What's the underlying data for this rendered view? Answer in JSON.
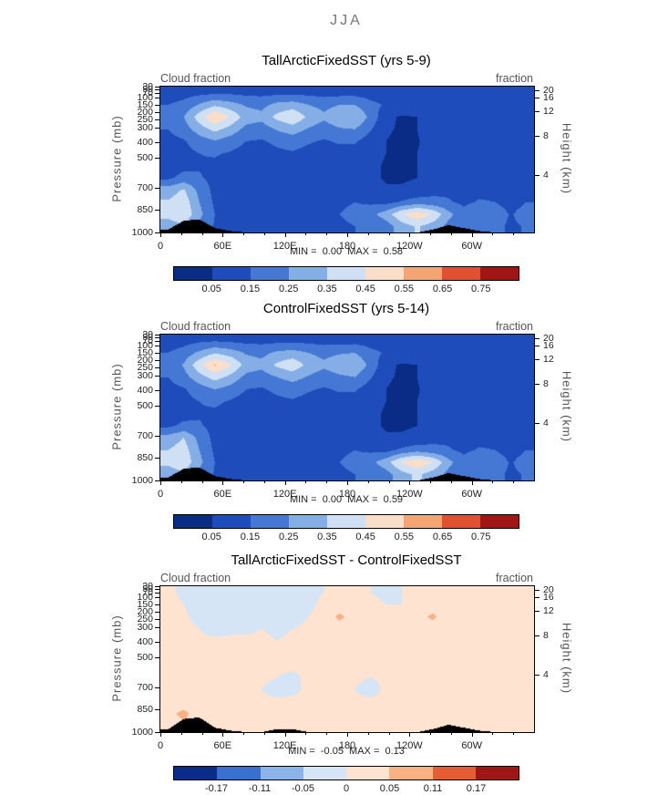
{
  "figure_title": "JJA",
  "axes": {
    "top_left_label": "Cloud fraction",
    "top_right_label": "fraction",
    "pressure_axis_title": "Pressure (mb)",
    "height_axis_title": "Height (km)",
    "x_minor_step": 20,
    "x_ticks": [
      {
        "lon": 0,
        "label": "0"
      },
      {
        "lon": 60,
        "label": "60E"
      },
      {
        "lon": 120,
        "label": "120E"
      },
      {
        "lon": 180,
        "label": "180"
      },
      {
        "lon": 240,
        "label": "120W"
      },
      {
        "lon": 300,
        "label": "60W"
      }
    ],
    "pressure_ticks": [
      {
        "p": 30,
        "label": "30"
      },
      {
        "p": 50,
        "label": "50"
      },
      {
        "p": 70,
        "label": "70"
      },
      {
        "p": 100,
        "label": "100"
      },
      {
        "p": 150,
        "label": "150"
      },
      {
        "p": 200,
        "label": "200"
      },
      {
        "p": 250,
        "label": "250"
      },
      {
        "p": 300,
        "label": "300"
      },
      {
        "p": 400,
        "label": "400"
      },
      {
        "p": 500,
        "label": "500"
      },
      {
        "p": 700,
        "label": "700"
      },
      {
        "p": 850,
        "label": "850"
      },
      {
        "p": 1000,
        "label": "1000"
      }
    ],
    "height_ticks": [
      {
        "km": 20,
        "p": 55,
        "label": "20"
      },
      {
        "km": 16,
        "p": 103,
        "label": "16"
      },
      {
        "km": 12,
        "p": 194,
        "label": "12"
      },
      {
        "km": 8,
        "p": 356,
        "label": "8"
      },
      {
        "km": 4,
        "p": 616,
        "label": "4"
      }
    ]
  },
  "chart_data": [
    {
      "type": "heatmap",
      "title": "TallArcticFixedSST (yrs 5-9)",
      "minmax": "MIN =  0.00  MAX =  0.58",
      "min": 0.0,
      "max": 0.58,
      "x_range_deg": [
        0,
        360
      ],
      "pressure_range_mb": [
        30,
        1000
      ],
      "levels": [
        0.05,
        0.15,
        0.25,
        0.35,
        0.45,
        0.55,
        0.65,
        0.75
      ],
      "colors": [
        "#0a2c86",
        "#1e4cba",
        "#4478d4",
        "#85aee6",
        "#cfe0f4",
        "#f9dfca",
        "#f5a571",
        "#e0512f",
        "#a01515"
      ],
      "colorbar_labels": [
        "0.05",
        "0.15",
        "0.25",
        "0.35",
        "0.45",
        "0.55",
        "0.65",
        "0.75"
      ],
      "values": [
        [
          0.1,
          0.11,
          0.12,
          0.13,
          0.13,
          0.12,
          0.12,
          0.12,
          0.12,
          0.12,
          0.11,
          0.11,
          0.11,
          0.1,
          0.09,
          0.09,
          0.09,
          0.1,
          0.1,
          0.09,
          0.09,
          0.09,
          0.09,
          0.1
        ],
        [
          0.15,
          0.18,
          0.26,
          0.33,
          0.29,
          0.24,
          0.22,
          0.28,
          0.3,
          0.25,
          0.22,
          0.25,
          0.25,
          0.18,
          0.14,
          0.12,
          0.12,
          0.15,
          0.13,
          0.12,
          0.12,
          0.13,
          0.12,
          0.13
        ],
        [
          0.18,
          0.25,
          0.4,
          0.55,
          0.44,
          0.3,
          0.28,
          0.38,
          0.44,
          0.33,
          0.27,
          0.33,
          0.35,
          0.22,
          0.07,
          0.04,
          0.05,
          0.14,
          0.1,
          0.08,
          0.09,
          0.11,
          0.1,
          0.13
        ],
        [
          0.15,
          0.2,
          0.3,
          0.38,
          0.31,
          0.22,
          0.2,
          0.26,
          0.3,
          0.24,
          0.2,
          0.24,
          0.25,
          0.16,
          0.06,
          0.04,
          0.05,
          0.12,
          0.09,
          0.07,
          0.08,
          0.1,
          0.09,
          0.11
        ],
        [
          0.12,
          0.14,
          0.2,
          0.24,
          0.2,
          0.15,
          0.14,
          0.17,
          0.19,
          0.16,
          0.14,
          0.16,
          0.16,
          0.1,
          0.05,
          0.03,
          0.04,
          0.1,
          0.08,
          0.06,
          0.07,
          0.09,
          0.08,
          0.09
        ],
        [
          0.1,
          0.12,
          0.15,
          0.16,
          0.14,
          0.11,
          0.11,
          0.13,
          0.14,
          0.12,
          0.11,
          0.12,
          0.12,
          0.08,
          0.05,
          0.04,
          0.05,
          0.11,
          0.09,
          0.07,
          0.08,
          0.09,
          0.08,
          0.09
        ],
        [
          0.1,
          0.12,
          0.14,
          0.13,
          0.11,
          0.09,
          0.1,
          0.12,
          0.12,
          0.1,
          0.1,
          0.11,
          0.1,
          0.07,
          0.04,
          0.03,
          0.05,
          0.1,
          0.09,
          0.07,
          0.08,
          0.09,
          0.08,
          0.08
        ],
        [
          0.13,
          0.18,
          0.16,
          0.12,
          0.1,
          0.08,
          0.09,
          0.11,
          0.11,
          0.09,
          0.09,
          0.1,
          0.1,
          0.07,
          0.04,
          0.04,
          0.05,
          0.1,
          0.1,
          0.08,
          0.09,
          0.1,
          0.08,
          0.09
        ],
        [
          0.3,
          0.36,
          0.22,
          0.12,
          0.09,
          0.08,
          0.08,
          0.1,
          0.1,
          0.09,
          0.09,
          0.1,
          0.1,
          0.08,
          0.06,
          0.06,
          0.07,
          0.12,
          0.13,
          0.1,
          0.12,
          0.12,
          0.09,
          0.12
        ],
        [
          0.36,
          0.41,
          0.25,
          0.13,
          0.1,
          0.09,
          0.09,
          0.11,
          0.11,
          0.1,
          0.11,
          0.13,
          0.15,
          0.13,
          0.12,
          0.16,
          0.2,
          0.18,
          0.16,
          0.13,
          0.16,
          0.15,
          0.1,
          0.15
        ],
        [
          0.38,
          0.43,
          0.28,
          0.15,
          0.12,
          0.1,
          0.1,
          0.12,
          0.13,
          0.12,
          0.13,
          0.15,
          0.18,
          0.22,
          0.3,
          0.44,
          0.52,
          0.44,
          0.28,
          0.18,
          0.25,
          0.22,
          0.14,
          0.2
        ],
        [
          0.3,
          0.33,
          0.22,
          0.14,
          0.12,
          0.1,
          0.1,
          0.12,
          0.12,
          0.11,
          0.12,
          0.13,
          0.15,
          0.16,
          0.2,
          0.3,
          0.36,
          0.3,
          0.22,
          0.16,
          0.2,
          0.18,
          0.13,
          0.16
        ]
      ],
      "topography": [
        0.02,
        0.08,
        0.09,
        0.03,
        0.01,
        0,
        0,
        0,
        0,
        0,
        0,
        0,
        0,
        0,
        0,
        0,
        0,
        0.02,
        0.05,
        0.03,
        0.01,
        0,
        0,
        0
      ]
    },
    {
      "type": "heatmap",
      "title": "ControlFixedSST (yrs 5-14)",
      "minmax": "MIN =  0.00  MAX =  0.59",
      "min": 0.0,
      "max": 0.59,
      "x_range_deg": [
        0,
        360
      ],
      "pressure_range_mb": [
        30,
        1000
      ],
      "levels": [
        0.05,
        0.15,
        0.25,
        0.35,
        0.45,
        0.55,
        0.65,
        0.75
      ],
      "colors": [
        "#0a2c86",
        "#1e4cba",
        "#4478d4",
        "#85aee6",
        "#cfe0f4",
        "#f9dfca",
        "#f5a571",
        "#e0512f",
        "#a01515"
      ],
      "colorbar_labels": [
        "0.05",
        "0.15",
        "0.25",
        "0.35",
        "0.45",
        "0.55",
        "0.65",
        "0.75"
      ],
      "values": [
        [
          0.1,
          0.11,
          0.13,
          0.14,
          0.13,
          0.12,
          0.12,
          0.12,
          0.12,
          0.12,
          0.11,
          0.11,
          0.11,
          0.1,
          0.09,
          0.09,
          0.09,
          0.1,
          0.1,
          0.09,
          0.09,
          0.09,
          0.09,
          0.1
        ],
        [
          0.15,
          0.19,
          0.27,
          0.34,
          0.3,
          0.24,
          0.22,
          0.27,
          0.29,
          0.25,
          0.22,
          0.24,
          0.25,
          0.18,
          0.14,
          0.12,
          0.12,
          0.15,
          0.13,
          0.12,
          0.12,
          0.13,
          0.12,
          0.13
        ],
        [
          0.18,
          0.26,
          0.42,
          0.56,
          0.46,
          0.31,
          0.28,
          0.37,
          0.42,
          0.32,
          0.27,
          0.32,
          0.34,
          0.22,
          0.07,
          0.04,
          0.05,
          0.14,
          0.1,
          0.08,
          0.09,
          0.11,
          0.1,
          0.13
        ],
        [
          0.15,
          0.21,
          0.31,
          0.39,
          0.32,
          0.22,
          0.2,
          0.25,
          0.29,
          0.24,
          0.2,
          0.23,
          0.25,
          0.16,
          0.06,
          0.04,
          0.05,
          0.12,
          0.09,
          0.07,
          0.08,
          0.1,
          0.09,
          0.11
        ],
        [
          0.12,
          0.14,
          0.2,
          0.25,
          0.21,
          0.15,
          0.14,
          0.17,
          0.19,
          0.16,
          0.14,
          0.16,
          0.16,
          0.1,
          0.05,
          0.03,
          0.04,
          0.1,
          0.08,
          0.06,
          0.07,
          0.09,
          0.08,
          0.09
        ],
        [
          0.1,
          0.12,
          0.15,
          0.17,
          0.14,
          0.11,
          0.11,
          0.13,
          0.14,
          0.12,
          0.11,
          0.12,
          0.12,
          0.08,
          0.05,
          0.04,
          0.05,
          0.11,
          0.09,
          0.07,
          0.08,
          0.09,
          0.08,
          0.09
        ],
        [
          0.1,
          0.12,
          0.14,
          0.13,
          0.11,
          0.09,
          0.1,
          0.12,
          0.12,
          0.1,
          0.1,
          0.11,
          0.1,
          0.07,
          0.04,
          0.03,
          0.05,
          0.1,
          0.09,
          0.07,
          0.08,
          0.09,
          0.08,
          0.08
        ],
        [
          0.13,
          0.17,
          0.16,
          0.12,
          0.1,
          0.08,
          0.09,
          0.11,
          0.11,
          0.09,
          0.09,
          0.1,
          0.1,
          0.07,
          0.04,
          0.04,
          0.05,
          0.1,
          0.1,
          0.08,
          0.09,
          0.1,
          0.08,
          0.09
        ],
        [
          0.29,
          0.35,
          0.22,
          0.12,
          0.09,
          0.08,
          0.08,
          0.1,
          0.1,
          0.09,
          0.09,
          0.1,
          0.1,
          0.08,
          0.06,
          0.06,
          0.07,
          0.12,
          0.13,
          0.1,
          0.12,
          0.12,
          0.09,
          0.12
        ],
        [
          0.35,
          0.4,
          0.25,
          0.13,
          0.1,
          0.09,
          0.09,
          0.11,
          0.11,
          0.1,
          0.11,
          0.13,
          0.15,
          0.13,
          0.12,
          0.17,
          0.21,
          0.18,
          0.16,
          0.13,
          0.16,
          0.15,
          0.1,
          0.15
        ],
        [
          0.37,
          0.42,
          0.28,
          0.15,
          0.12,
          0.1,
          0.1,
          0.12,
          0.13,
          0.12,
          0.13,
          0.15,
          0.18,
          0.22,
          0.31,
          0.46,
          0.53,
          0.45,
          0.28,
          0.18,
          0.25,
          0.22,
          0.14,
          0.2
        ],
        [
          0.3,
          0.33,
          0.22,
          0.14,
          0.12,
          0.1,
          0.1,
          0.12,
          0.12,
          0.11,
          0.12,
          0.13,
          0.15,
          0.16,
          0.21,
          0.31,
          0.37,
          0.3,
          0.22,
          0.16,
          0.2,
          0.18,
          0.13,
          0.16
        ]
      ],
      "topography": [
        0.02,
        0.08,
        0.09,
        0.03,
        0.01,
        0,
        0,
        0,
        0,
        0,
        0,
        0,
        0,
        0,
        0,
        0,
        0,
        0.02,
        0.05,
        0.03,
        0.01,
        0,
        0,
        0
      ]
    },
    {
      "type": "heatmap",
      "title": "TallArcticFixedSST - ControlFixedSST",
      "minmax": "MIN =  -0.05  MAX =  0.13",
      "min": -0.05,
      "max": 0.13,
      "x_range_deg": [
        0,
        360
      ],
      "pressure_range_mb": [
        30,
        1000
      ],
      "levels": [
        -0.17,
        -0.11,
        -0.05,
        0,
        0.05,
        0.11,
        0.17
      ],
      "colors": [
        "#0a2c86",
        "#3a6fce",
        "#8db4e8",
        "#d6e5f6",
        "#fde3d0",
        "#f8b183",
        "#e65c35",
        "#a01515"
      ],
      "colorbar_labels": [
        "-0.17",
        "-0.11",
        "-0.05",
        "0",
        "0.05",
        "0.11",
        "0.17"
      ],
      "values": [
        [
          0.01,
          -0.01,
          -0.02,
          -0.02,
          -0.01,
          -0.01,
          0.0,
          -0.01,
          -0.02,
          -0.01,
          0.0,
          0.01,
          0.01,
          0.0,
          -0.01,
          0.0,
          0.01,
          0.01,
          0.0,
          0.0,
          0.01,
          0.01,
          0.0,
          0.01
        ],
        [
          0.02,
          0.0,
          -0.03,
          -0.03,
          -0.02,
          -0.02,
          -0.01,
          -0.02,
          -0.03,
          -0.01,
          0.01,
          0.02,
          0.02,
          0.01,
          0.0,
          0.0,
          0.02,
          0.02,
          0.01,
          0.0,
          0.01,
          0.02,
          0.01,
          0.02
        ],
        [
          0.04,
          0.01,
          -0.02,
          -0.04,
          -0.03,
          -0.02,
          -0.01,
          -0.03,
          -0.02,
          0.0,
          0.02,
          0.06,
          0.03,
          0.01,
          0.0,
          0.01,
          0.03,
          0.06,
          0.02,
          0.01,
          0.02,
          0.03,
          0.02,
          0.03
        ],
        [
          0.03,
          0.02,
          0.0,
          -0.02,
          -0.01,
          -0.01,
          0.0,
          -0.01,
          0.0,
          0.01,
          0.02,
          0.03,
          0.02,
          0.01,
          0.01,
          0.01,
          0.02,
          0.03,
          0.02,
          0.01,
          0.02,
          0.02,
          0.02,
          0.02
        ],
        [
          0.02,
          0.02,
          0.01,
          0.01,
          0.01,
          0.01,
          0.01,
          0.0,
          0.01,
          0.01,
          0.02,
          0.02,
          0.02,
          0.01,
          0.01,
          0.01,
          0.02,
          0.02,
          0.02,
          0.01,
          0.02,
          0.02,
          0.02,
          0.02
        ],
        [
          0.02,
          0.02,
          0.02,
          0.02,
          0.01,
          0.01,
          0.01,
          0.01,
          0.01,
          0.01,
          0.02,
          0.02,
          0.02,
          0.01,
          0.01,
          0.01,
          0.02,
          0.02,
          0.02,
          0.02,
          0.02,
          0.02,
          0.02,
          0.02
        ],
        [
          0.02,
          0.03,
          0.03,
          0.02,
          0.01,
          0.01,
          0.01,
          0.01,
          0.01,
          0.01,
          0.02,
          0.02,
          0.01,
          0.01,
          0.01,
          0.01,
          0.02,
          0.03,
          0.02,
          0.02,
          0.02,
          0.02,
          0.02,
          0.02
        ],
        [
          0.02,
          0.03,
          0.03,
          0.02,
          0.02,
          0.01,
          0.01,
          0.0,
          -0.01,
          0.01,
          0.02,
          0.02,
          0.01,
          0.0,
          0.01,
          0.01,
          0.02,
          0.02,
          0.02,
          0.02,
          0.02,
          0.02,
          0.02,
          0.02
        ],
        [
          0.02,
          0.02,
          0.02,
          0.02,
          0.01,
          0.01,
          0.0,
          -0.02,
          -0.01,
          0.01,
          0.02,
          0.01,
          0.0,
          -0.02,
          0.01,
          0.01,
          0.02,
          0.02,
          0.02,
          0.02,
          0.02,
          0.02,
          0.02,
          0.02
        ],
        [
          0.03,
          0.03,
          0.03,
          0.02,
          0.02,
          0.01,
          0.01,
          0.01,
          0.01,
          0.01,
          0.02,
          0.02,
          0.01,
          0.01,
          0.02,
          0.02,
          0.03,
          0.03,
          0.02,
          0.02,
          0.03,
          0.02,
          0.02,
          0.02
        ],
        [
          0.04,
          0.06,
          0.03,
          0.02,
          0.02,
          0.02,
          0.01,
          0.01,
          0.02,
          0.02,
          0.02,
          0.03,
          0.03,
          0.02,
          0.03,
          0.04,
          0.04,
          0.03,
          0.02,
          0.02,
          0.03,
          0.03,
          0.02,
          0.03
        ],
        [
          0.03,
          0.04,
          0.03,
          0.02,
          0.02,
          0.02,
          0.01,
          0.01,
          0.02,
          0.02,
          0.02,
          0.02,
          0.02,
          0.02,
          0.02,
          0.03,
          0.03,
          0.03,
          0.02,
          0.02,
          0.02,
          0.02,
          0.02,
          0.02
        ]
      ],
      "topography": [
        0.02,
        0.09,
        0.1,
        0.03,
        0.01,
        0,
        0,
        0.02,
        0.02,
        0,
        0,
        0,
        0,
        0,
        0,
        0,
        0,
        0.02,
        0.05,
        0.03,
        0.01,
        0,
        0,
        0
      ]
    }
  ]
}
